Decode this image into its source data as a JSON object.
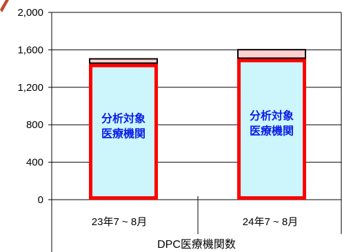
{
  "chart_data": {
    "type": "bar",
    "stacked": true,
    "categories": [
      "23年7 ~ 8月",
      "24年7 ~ 8月"
    ],
    "series": [
      {
        "values": [
          1451,
          1504
        ],
        "color": "#ccf6fb",
        "border": "#ff0000"
      },
      {
        "values": [
          60,
          105
        ],
        "color": "#ffd0d0",
        "border": "#000000"
      }
    ],
    "bar_labels": [
      [
        "分析対象",
        "医療機関"
      ],
      [
        "分析対象",
        "医療機関"
      ]
    ],
    "xlabel": "DPC医療機関数",
    "ylabel": "",
    "ylim": [
      0,
      2000
    ],
    "yticks": [
      "0",
      "400",
      "800",
      "1,200",
      "1,600",
      "2,000"
    ],
    "grid": true
  }
}
